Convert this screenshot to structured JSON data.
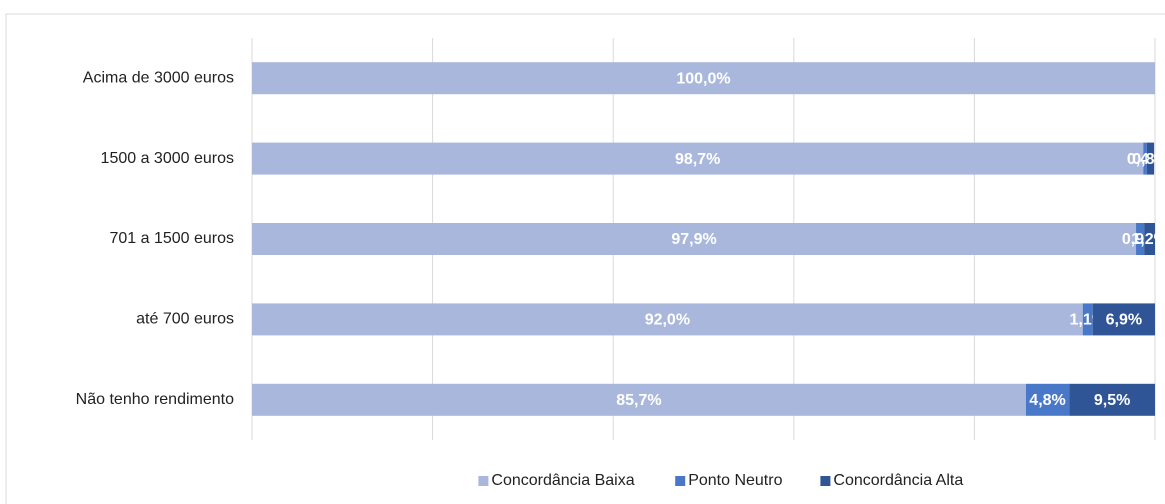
{
  "chart_data": {
    "type": "bar",
    "orientation": "horizontal",
    "stacked": true,
    "categories": [
      "Acima de 3000 euros",
      "1500 a 3000 euros",
      "701 a 1500 euros",
      "até 700 euros",
      "Não tenho rendimento"
    ],
    "series": [
      {
        "name": "Concordância Baixa",
        "color": "#a9b7dc",
        "values": [
          100.0,
          98.7,
          97.9,
          92.0,
          85.7
        ],
        "value_labels": [
          "100,0%",
          "98,7%",
          "97,9%",
          "92,0%",
          "85,7%"
        ]
      },
      {
        "name": "Ponto Neutro",
        "color": "#4a78c9",
        "values": [
          null,
          0.4,
          0.9,
          1.1,
          4.8
        ],
        "value_labels": [
          null,
          "0,4%",
          "0,9%",
          "1,1%",
          "4,8%"
        ]
      },
      {
        "name": "Concordância Alta",
        "color": "#2f5596",
        "values": [
          null,
          0.8,
          1.2,
          6.9,
          9.5
        ],
        "value_labels": [
          null,
          "0,8%",
          "1,2%",
          "6,9%",
          "9,5%"
        ]
      }
    ],
    "xlim": [
      0,
      100
    ],
    "xticks": [
      0,
      20,
      40,
      60,
      80,
      100
    ],
    "grid": true,
    "legend": "bottom"
  }
}
